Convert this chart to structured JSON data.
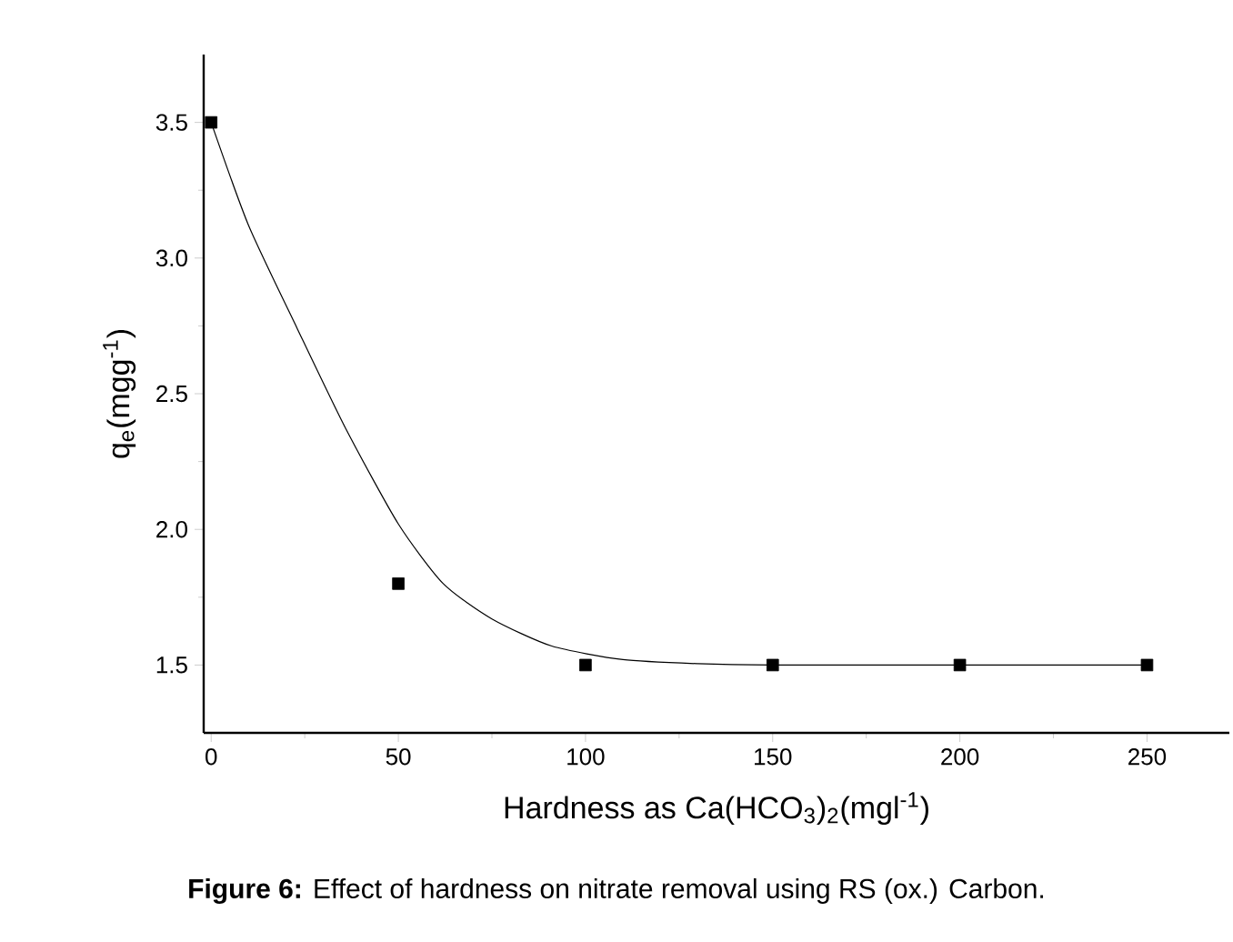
{
  "chart_data": {
    "type": "scatter",
    "xlabel": "Hardness as Ca(HCO$_{3}$)$_{2}$(mgl$^{-1}$)",
    "ylabel": "q$_{e}$(mgg$^{-1}$)",
    "annotations": [
      "**Figure 6:** Effect of hardness on nitrate removal using RS (ox.) Carbon."
    ],
    "xlim": [
      -2,
      272
    ],
    "ylim": [
      1.25,
      3.75
    ],
    "xticks": [
      0,
      50,
      100,
      150,
      200,
      250
    ],
    "yticks": [
      1.5,
      {
        "value": 2,
        "label": "2.0"
      },
      2.5,
      {
        "value": 3,
        "label": "3.0"
      },
      3.5
    ],
    "series": [
      {
        "color": "#000000",
        "marker": "square",
        "x": [
          0,
          50,
          100,
          150,
          200,
          250
        ],
        "values": [
          3.5,
          1.8,
          1.5,
          1.5,
          1.5,
          1.5
        ]
      },
      {
        "type": "line",
        "color": "#000000",
        "marker": "none",
        "x": [
          0,
          10,
          23,
          36,
          50,
          62,
          75,
          91,
          110,
          130,
          150,
          200,
          250
        ],
        "values": [
          3.5,
          3.12,
          2.74,
          2.37,
          2.02,
          1.8,
          1.67,
          1.57,
          1.52,
          1.505,
          1.5,
          1.5,
          1.5
        ]
      }
    ]
  }
}
